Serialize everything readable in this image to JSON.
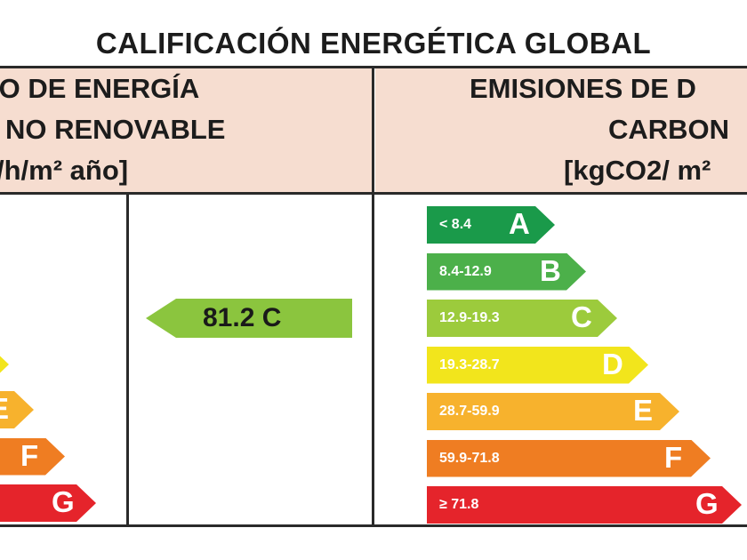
{
  "title": "CALIFICACIÓN ENERGÉTICA GLOBAL",
  "left_header": {
    "line1": "IO DE ENERGÍA",
    "line2": "NO RENOVABLE",
    "line3": "/h/m² año]"
  },
  "right_header": {
    "line1": "EMISIONES DE D",
    "line2": "CARBON",
    "line3": "[kgCO2/ m²"
  },
  "consumption_value": "81.2 C",
  "emission_scale": [
    {
      "letter": "A",
      "range": "< 8.4",
      "color": "#1a9a4a"
    },
    {
      "letter": "B",
      "range": "8.4-12.9",
      "color": "#4cb04a"
    },
    {
      "letter": "C",
      "range": "12.9-19.3",
      "color": "#9ccb3c"
    },
    {
      "letter": "D",
      "range": "19.3-28.7",
      "color": "#f2e51c"
    },
    {
      "letter": "E",
      "range": "28.7-59.9",
      "color": "#f7b22d"
    },
    {
      "letter": "F",
      "range": "59.9-71.8",
      "color": "#ef7d22"
    },
    {
      "letter": "G",
      "range": "≥ 71.8",
      "color": "#e5242b"
    }
  ],
  "consumption_scale_partial": [
    {
      "letter": "E",
      "color": "#f7b22d"
    },
    {
      "letter": "F",
      "color": "#ef7d22"
    },
    {
      "letter": "G",
      "color": "#e5242b"
    }
  ],
  "marker_color": "#8bc53e"
}
